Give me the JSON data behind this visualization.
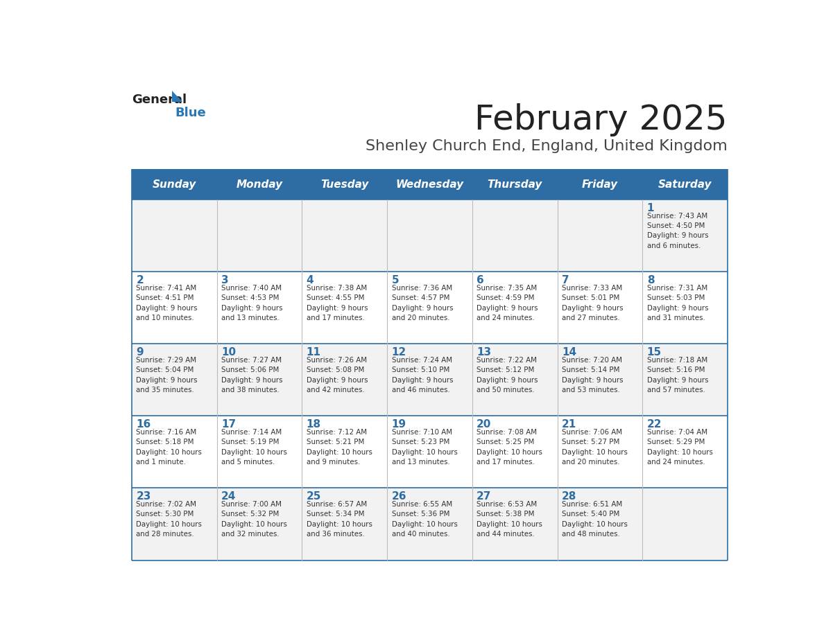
{
  "title": "February 2025",
  "subtitle": "Shenley Church End, England, United Kingdom",
  "days_of_week": [
    "Sunday",
    "Monday",
    "Tuesday",
    "Wednesday",
    "Thursday",
    "Friday",
    "Saturday"
  ],
  "header_bg": "#2e6da4",
  "header_text": "#ffffff",
  "cell_bg_odd": "#f2f2f2",
  "cell_bg_even": "#ffffff",
  "cell_border": "#2e6da4",
  "day_num_color": "#2e6da4",
  "text_color": "#333333",
  "title_color": "#222222",
  "subtitle_color": "#444444",
  "logo_general_color": "#222222",
  "logo_blue_color": "#2878b5",
  "logo_triangle_color": "#2878b5",
  "calendar": [
    [
      {
        "day": null,
        "info": null
      },
      {
        "day": null,
        "info": null
      },
      {
        "day": null,
        "info": null
      },
      {
        "day": null,
        "info": null
      },
      {
        "day": null,
        "info": null
      },
      {
        "day": null,
        "info": null
      },
      {
        "day": 1,
        "info": "Sunrise: 7:43 AM\nSunset: 4:50 PM\nDaylight: 9 hours\nand 6 minutes."
      }
    ],
    [
      {
        "day": 2,
        "info": "Sunrise: 7:41 AM\nSunset: 4:51 PM\nDaylight: 9 hours\nand 10 minutes."
      },
      {
        "day": 3,
        "info": "Sunrise: 7:40 AM\nSunset: 4:53 PM\nDaylight: 9 hours\nand 13 minutes."
      },
      {
        "day": 4,
        "info": "Sunrise: 7:38 AM\nSunset: 4:55 PM\nDaylight: 9 hours\nand 17 minutes."
      },
      {
        "day": 5,
        "info": "Sunrise: 7:36 AM\nSunset: 4:57 PM\nDaylight: 9 hours\nand 20 minutes."
      },
      {
        "day": 6,
        "info": "Sunrise: 7:35 AM\nSunset: 4:59 PM\nDaylight: 9 hours\nand 24 minutes."
      },
      {
        "day": 7,
        "info": "Sunrise: 7:33 AM\nSunset: 5:01 PM\nDaylight: 9 hours\nand 27 minutes."
      },
      {
        "day": 8,
        "info": "Sunrise: 7:31 AM\nSunset: 5:03 PM\nDaylight: 9 hours\nand 31 minutes."
      }
    ],
    [
      {
        "day": 9,
        "info": "Sunrise: 7:29 AM\nSunset: 5:04 PM\nDaylight: 9 hours\nand 35 minutes."
      },
      {
        "day": 10,
        "info": "Sunrise: 7:27 AM\nSunset: 5:06 PM\nDaylight: 9 hours\nand 38 minutes."
      },
      {
        "day": 11,
        "info": "Sunrise: 7:26 AM\nSunset: 5:08 PM\nDaylight: 9 hours\nand 42 minutes."
      },
      {
        "day": 12,
        "info": "Sunrise: 7:24 AM\nSunset: 5:10 PM\nDaylight: 9 hours\nand 46 minutes."
      },
      {
        "day": 13,
        "info": "Sunrise: 7:22 AM\nSunset: 5:12 PM\nDaylight: 9 hours\nand 50 minutes."
      },
      {
        "day": 14,
        "info": "Sunrise: 7:20 AM\nSunset: 5:14 PM\nDaylight: 9 hours\nand 53 minutes."
      },
      {
        "day": 15,
        "info": "Sunrise: 7:18 AM\nSunset: 5:16 PM\nDaylight: 9 hours\nand 57 minutes."
      }
    ],
    [
      {
        "day": 16,
        "info": "Sunrise: 7:16 AM\nSunset: 5:18 PM\nDaylight: 10 hours\nand 1 minute."
      },
      {
        "day": 17,
        "info": "Sunrise: 7:14 AM\nSunset: 5:19 PM\nDaylight: 10 hours\nand 5 minutes."
      },
      {
        "day": 18,
        "info": "Sunrise: 7:12 AM\nSunset: 5:21 PM\nDaylight: 10 hours\nand 9 minutes."
      },
      {
        "day": 19,
        "info": "Sunrise: 7:10 AM\nSunset: 5:23 PM\nDaylight: 10 hours\nand 13 minutes."
      },
      {
        "day": 20,
        "info": "Sunrise: 7:08 AM\nSunset: 5:25 PM\nDaylight: 10 hours\nand 17 minutes."
      },
      {
        "day": 21,
        "info": "Sunrise: 7:06 AM\nSunset: 5:27 PM\nDaylight: 10 hours\nand 20 minutes."
      },
      {
        "day": 22,
        "info": "Sunrise: 7:04 AM\nSunset: 5:29 PM\nDaylight: 10 hours\nand 24 minutes."
      }
    ],
    [
      {
        "day": 23,
        "info": "Sunrise: 7:02 AM\nSunset: 5:30 PM\nDaylight: 10 hours\nand 28 minutes."
      },
      {
        "day": 24,
        "info": "Sunrise: 7:00 AM\nSunset: 5:32 PM\nDaylight: 10 hours\nand 32 minutes."
      },
      {
        "day": 25,
        "info": "Sunrise: 6:57 AM\nSunset: 5:34 PM\nDaylight: 10 hours\nand 36 minutes."
      },
      {
        "day": 26,
        "info": "Sunrise: 6:55 AM\nSunset: 5:36 PM\nDaylight: 10 hours\nand 40 minutes."
      },
      {
        "day": 27,
        "info": "Sunrise: 6:53 AM\nSunset: 5:38 PM\nDaylight: 10 hours\nand 44 minutes."
      },
      {
        "day": 28,
        "info": "Sunrise: 6:51 AM\nSunset: 5:40 PM\nDaylight: 10 hours\nand 48 minutes."
      },
      {
        "day": null,
        "info": null
      }
    ]
  ]
}
